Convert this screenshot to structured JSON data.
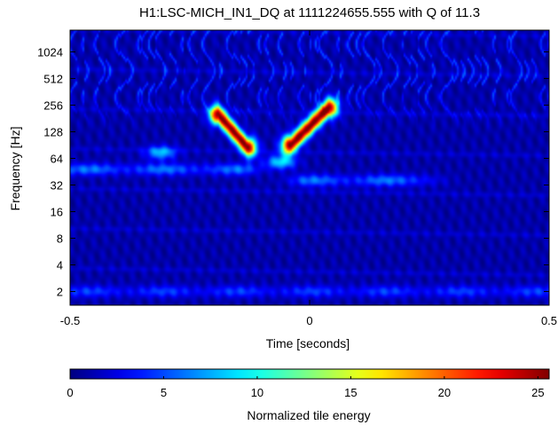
{
  "chart_data": {
    "type": "heatmap",
    "title": "H1:LSC-MICH_IN1_DQ at 1111224655.555 with Q of 11.3",
    "xlabel": "Time [seconds]",
    "ylabel": "Frequency [Hz]",
    "xlim": [
      -0.5,
      0.5
    ],
    "ylim": [
      1.4,
      1800
    ],
    "yscale": "log2",
    "x_ticks": [
      -0.5,
      0,
      0.5
    ],
    "x_tick_labels": [
      "-0.5",
      "0",
      "0.5"
    ],
    "y_ticks": [
      2,
      4,
      8,
      16,
      32,
      64,
      128,
      256,
      512,
      1024
    ],
    "y_tick_labels": [
      "2",
      "4",
      "8",
      "16",
      "32",
      "64",
      "128",
      "256",
      "512",
      "1024"
    ],
    "colorbar": {
      "label": "Normalized tile energy",
      "range": [
        0,
        25.6
      ],
      "ticks": [
        0,
        5,
        10,
        15,
        20,
        25
      ],
      "tick_labels": [
        "0",
        "5",
        "10",
        "15",
        "20",
        "25"
      ],
      "colormap": "jet"
    },
    "features": [
      {
        "kind": "chirp",
        "t": [
          -0.19,
          -0.13
        ],
        "f": [
          200,
          85
        ],
        "peak_energy": 25
      },
      {
        "kind": "chirp",
        "t": [
          -0.04,
          0.04
        ],
        "f": [
          90,
          240
        ],
        "peak_energy": 25
      },
      {
        "kind": "band",
        "t": [
          -0.5,
          -0.15
        ],
        "f": 48,
        "peak_energy": 7
      },
      {
        "kind": "band",
        "t": [
          0.0,
          0.22
        ],
        "f": 36,
        "peak_energy": 7
      },
      {
        "kind": "band",
        "t": [
          -0.5,
          0.5
        ],
        "f": 2,
        "peak_energy": 5
      },
      {
        "kind": "blob",
        "t": -0.06,
        "f": 58,
        "peak_energy": 8
      },
      {
        "kind": "blob",
        "t": -0.31,
        "f": 74,
        "peak_energy": 7
      }
    ]
  }
}
